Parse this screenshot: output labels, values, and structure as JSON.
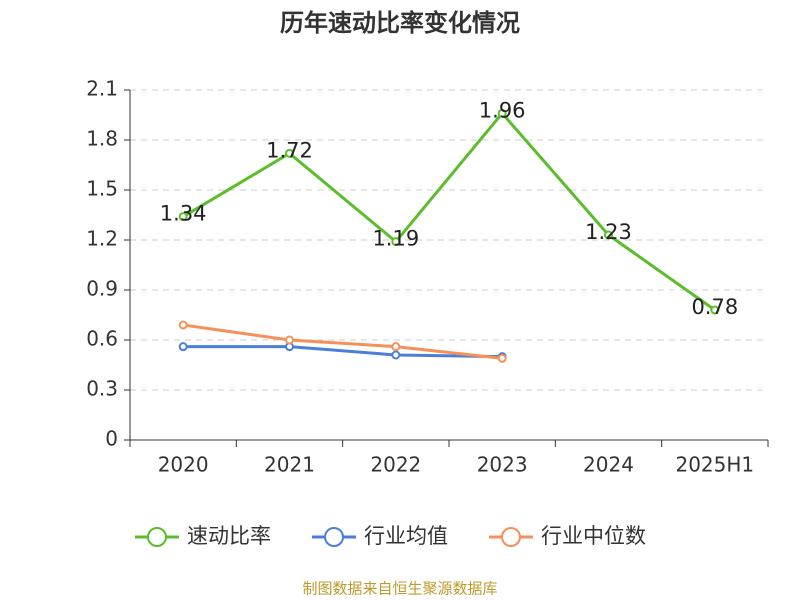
{
  "chart_data": {
    "type": "line",
    "title": "历年速动比率变化情况",
    "categories": [
      "2020",
      "2021",
      "2022",
      "2023",
      "2024",
      "2025H1"
    ],
    "series": [
      {
        "name": "速动比率",
        "color": "#5bbd2b",
        "values": [
          1.34,
          1.72,
          1.19,
          1.96,
          1.23,
          0.78
        ],
        "show_labels": true
      },
      {
        "name": "行业均值",
        "color": "#4a7fd9",
        "values": [
          0.56,
          0.56,
          0.51,
          0.5,
          null,
          null
        ]
      },
      {
        "name": "行业中位数",
        "color": "#f5905a",
        "values": [
          0.69,
          0.6,
          0.56,
          0.49,
          null,
          null
        ]
      }
    ],
    "ylim": [
      0,
      2.1
    ],
    "yticks": [
      0,
      0.3,
      0.6,
      0.9,
      1.2,
      1.5,
      1.8,
      2.1
    ],
    "grid": true,
    "legend": "bottom",
    "source": "制图数据来自恒生聚源数据库"
  }
}
